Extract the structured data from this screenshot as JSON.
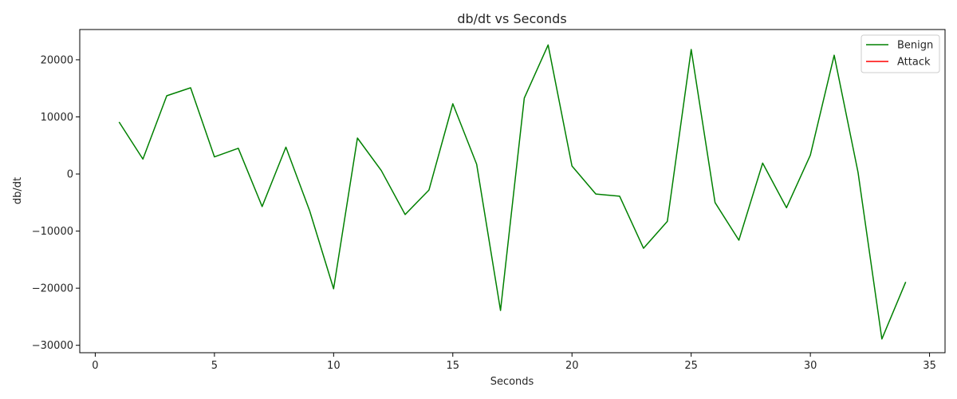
{
  "chart_data": {
    "type": "line",
    "title": "db/dt vs Seconds",
    "xlabel": "Seconds",
    "ylabel": "db/dt",
    "xlim": [
      -0.65,
      35.65
    ],
    "ylim": [
      -31300,
      25300
    ],
    "xticks": [
      0,
      5,
      10,
      15,
      20,
      25,
      30,
      35
    ],
    "yticks": [
      -30000,
      -20000,
      -10000,
      0,
      10000,
      20000
    ],
    "grid": false,
    "legend_position": "top-right",
    "series": [
      {
        "name": "Benign",
        "color": "#008000",
        "x": [
          1,
          2,
          3,
          4,
          5,
          6,
          7,
          8,
          9,
          10,
          11,
          12,
          13,
          14,
          15,
          16,
          17,
          18,
          19,
          20,
          21,
          22,
          23,
          24,
          25,
          26,
          27,
          28,
          29,
          30,
          31,
          32,
          33,
          34
        ],
        "y": [
          9100,
          2600,
          13700,
          15100,
          3000,
          4500,
          -5700,
          4700,
          -6500,
          -20100,
          6300,
          600,
          -7100,
          -2800,
          12300,
          1700,
          -23900,
          13300,
          22600,
          1400,
          -3500,
          -3900,
          -13000,
          -8300,
          21800,
          -5000,
          -11600,
          1900,
          -5900,
          3300,
          20800,
          300,
          -28900,
          -18900
        ]
      },
      {
        "name": "Attack",
        "color": "#ff0000",
        "x": [],
        "y": []
      }
    ]
  }
}
